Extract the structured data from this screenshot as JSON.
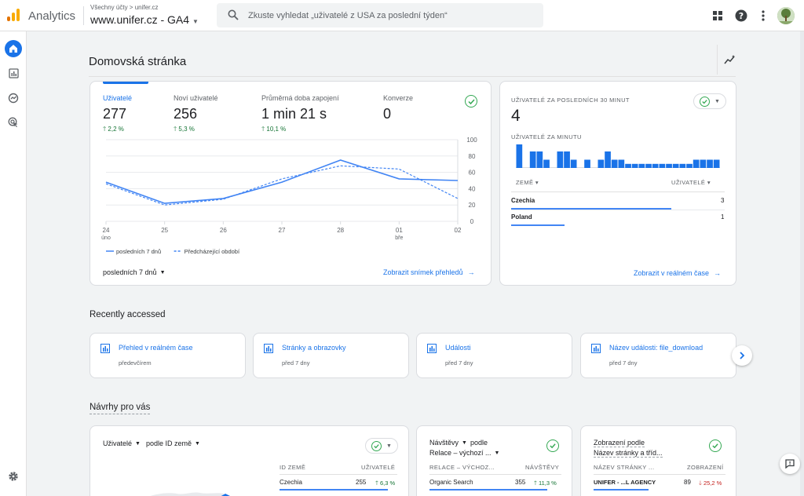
{
  "header": {
    "app_name": "Analytics",
    "breadcrumb": "Všechny účty > unifer.cz",
    "property": "www.unifer.cz - GA4",
    "search_placeholder": "Zkuste vyhledat „uživatelé z USA za poslední týden“"
  },
  "page": {
    "title": "Domovská stránka"
  },
  "overview": {
    "metrics": [
      {
        "label": "Uživatelé",
        "value": "277",
        "change": "2,2 %"
      },
      {
        "label": "Noví uživatelé",
        "value": "256",
        "change": "5,3 %"
      },
      {
        "label": "Průměrná doba zapojení",
        "value": "1 min 21 s",
        "change": "10,1 %"
      },
      {
        "label": "Konverze",
        "value": "0",
        "change": ""
      }
    ],
    "range_label": "posledních 7 dnů",
    "view_link": "Zobrazit snímek přehledů"
  },
  "chart_data": {
    "type": "line",
    "categories": [
      "24 úno",
      "25",
      "26",
      "27",
      "28",
      "01 bře",
      "02"
    ],
    "x_tick_top": [
      "24",
      "25",
      "26",
      "27",
      "28",
      "01",
      "02"
    ],
    "x_tick_bottom": [
      "úno",
      "",
      "",
      "",
      "",
      "bře",
      ""
    ],
    "y_ticks": [
      "100",
      "80",
      "60",
      "40",
      "20",
      "0"
    ],
    "ylim": [
      0,
      100
    ],
    "series": [
      {
        "name": "posledních 7 dnů",
        "values": [
          48,
          22,
          28,
          48,
          75,
          52,
          50
        ],
        "color": "#4285f4",
        "style": "solid"
      },
      {
        "name": "Předcházející období",
        "values": [
          46,
          20,
          27,
          52,
          68,
          64,
          28
        ],
        "color": "#4285f4",
        "style": "dashed"
      }
    ],
    "legend_placement": "bottom-left",
    "grid": true
  },
  "realtime": {
    "title": "UŽIVATELÉ ZA POSLEDNÍCH 30 MINUT",
    "value": "4",
    "per_minute_label": "UŽIVATELÉ ZA MINUTU",
    "per_minute_values": [
      2,
      0,
      1.4,
      1.4,
      0.7,
      0,
      1.4,
      1.4,
      0.7,
      0,
      0.7,
      0,
      0.7,
      1.4,
      0.7,
      0.7,
      0.35,
      0.35,
      0.35,
      0.35,
      0.35,
      0.35,
      0.35,
      0.35,
      0.35,
      0.35,
      0.7,
      0.7,
      0.7,
      0.7
    ],
    "col_country": "ZEMĚ",
    "col_users": "UŽIVATELÉ",
    "rows": [
      {
        "country": "Czechia",
        "users": "3",
        "share": 0.75
      },
      {
        "country": "Poland",
        "users": "1",
        "share": 0.25
      }
    ],
    "link": "Zobrazit v reálném čase"
  },
  "recent": {
    "title": "Recently accessed",
    "items": [
      {
        "title": "Přehled v reálném čase",
        "sub": "předevčírem"
      },
      {
        "title": "Stránky a obrazovky",
        "sub": "před 7 dny"
      },
      {
        "title": "Události",
        "sub": "před 7 dny"
      },
      {
        "title": "Název události: file_download",
        "sub": "před 7 dny"
      }
    ]
  },
  "suggestions": {
    "title": "Návrhy pro vás",
    "card1": {
      "metric": "Uživatelé",
      "dim": "podle ID země",
      "col1": "ID ZEMĚ",
      "col2": "UŽIVATELÉ",
      "row": {
        "name": "Czechia",
        "value": "255",
        "change": "6,3 %"
      }
    },
    "card2": {
      "line1_metric": "Návštěvy",
      "line1_rest": "podle",
      "line2": "Relace – výchozí ...",
      "col1": "RELACE – VÝCHOZ...",
      "col2": "NÁVŠTĚVY",
      "row": {
        "name": "Organic Search",
        "value": "355",
        "change": "11,3 %"
      }
    },
    "card3": {
      "line1": "Zobrazení podle",
      "line2": "Název stránky a tříd...",
      "col1": "NÁZEV STRÁNKY ...",
      "col2": "ZOBRAZENÍ",
      "row": {
        "name": "UNIFER - ...L AGENCY",
        "value": "89",
        "change": "25,2 %"
      }
    }
  }
}
